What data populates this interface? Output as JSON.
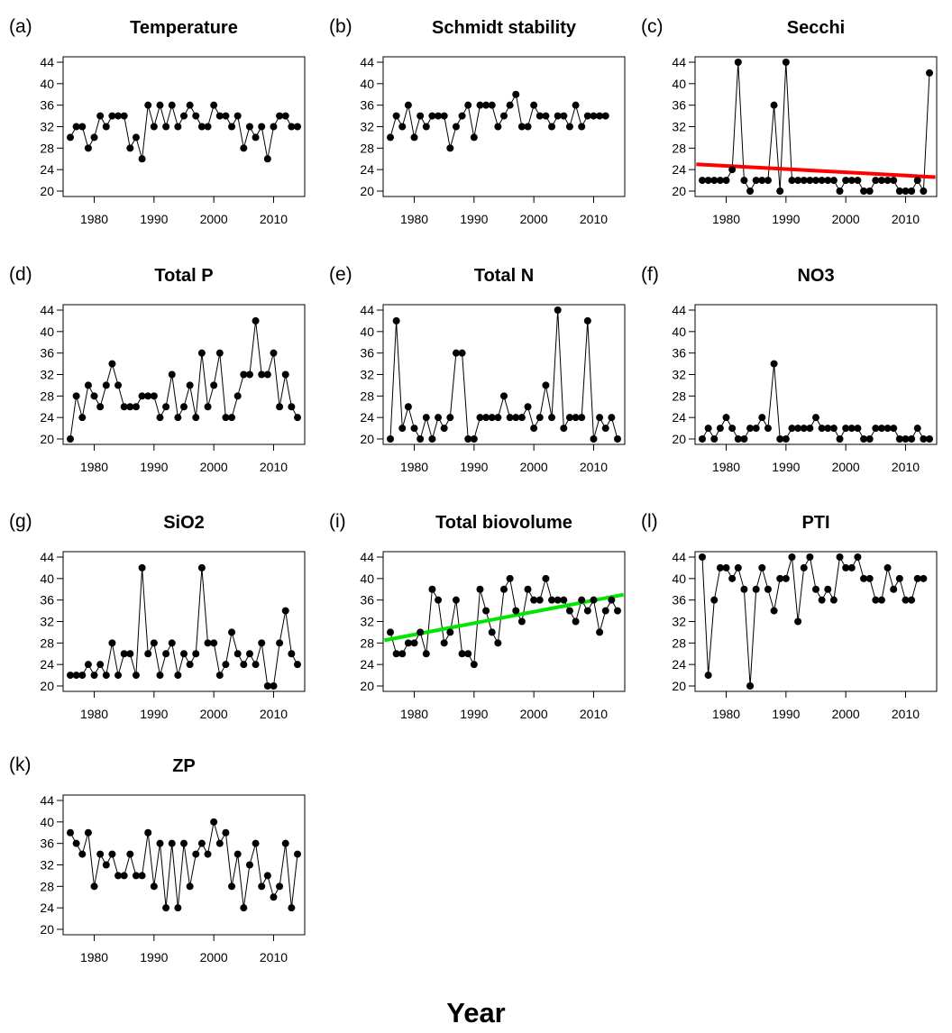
{
  "figure": {
    "xlabel": "Year"
  },
  "chart_data": [
    {
      "type": "line",
      "panel_label": "(a)",
      "title": "Temperature",
      "x": [
        1976,
        1977,
        1978,
        1979,
        1980,
        1981,
        1982,
        1983,
        1984,
        1985,
        1986,
        1987,
        1988,
        1989,
        1990,
        1991,
        1992,
        1993,
        1994,
        1995,
        1996,
        1997,
        1998,
        1999,
        2000,
        2001,
        2002,
        2003,
        2004,
        2005,
        2006,
        2007,
        2008,
        2009,
        2010,
        2011,
        2012,
        2013,
        2014
      ],
      "values": [
        30,
        32,
        32,
        28,
        30,
        34,
        32,
        34,
        34,
        34,
        28,
        30,
        26,
        36,
        32,
        36,
        32,
        36,
        32,
        34,
        36,
        34,
        32,
        32,
        36,
        34,
        34,
        32,
        34,
        28,
        32,
        30,
        32,
        26,
        32,
        34,
        34,
        32,
        32
      ],
      "xlim": [
        1975,
        2015
      ],
      "ylim": [
        20,
        44
      ],
      "xticks": [
        1980,
        1990,
        2000,
        2010
      ],
      "yticks": [
        20,
        24,
        28,
        32,
        36,
        40,
        44
      ]
    },
    {
      "type": "line",
      "panel_label": "(b)",
      "title": "Schmidt stability",
      "x": [
        1976,
        1977,
        1978,
        1979,
        1980,
        1981,
        1982,
        1983,
        1984,
        1985,
        1986,
        1987,
        1988,
        1989,
        1990,
        1991,
        1992,
        1993,
        1994,
        1995,
        1996,
        1997,
        1998,
        1999,
        2000,
        2001,
        2002,
        2003,
        2004,
        2005,
        2006,
        2007,
        2008,
        2009,
        2010,
        2011,
        2012
      ],
      "values": [
        30,
        34,
        32,
        36,
        30,
        34,
        32,
        34,
        34,
        34,
        28,
        32,
        34,
        36,
        30,
        36,
        36,
        36,
        32,
        34,
        36,
        38,
        32,
        32,
        36,
        34,
        34,
        32,
        34,
        34,
        32,
        36,
        32,
        34,
        34,
        34,
        34
      ],
      "xlim": [
        1975,
        2015
      ],
      "ylim": [
        20,
        44
      ],
      "xticks": [
        1980,
        1990,
        2000,
        2010
      ],
      "yticks": [
        20,
        24,
        28,
        32,
        36,
        40,
        44
      ]
    },
    {
      "type": "line",
      "panel_label": "(c)",
      "title": "Secchi",
      "x": [
        1976,
        1977,
        1978,
        1979,
        1980,
        1981,
        1982,
        1983,
        1984,
        1985,
        1986,
        1987,
        1988,
        1989,
        1990,
        1991,
        1992,
        1993,
        1994,
        1995,
        1996,
        1997,
        1998,
        1999,
        2000,
        2001,
        2002,
        2003,
        2004,
        2005,
        2006,
        2007,
        2008,
        2009,
        2010,
        2011,
        2012,
        2013,
        2014
      ],
      "values": [
        22,
        22,
        22,
        22,
        22,
        24,
        44,
        22,
        20,
        22,
        22,
        22,
        36,
        20,
        44,
        22,
        22,
        22,
        22,
        22,
        22,
        22,
        22,
        20,
        22,
        22,
        22,
        20,
        20,
        22,
        22,
        22,
        22,
        20,
        20,
        20,
        22,
        20,
        42
      ],
      "trend": {
        "color": "#ff0000",
        "x": [
          1975,
          2015
        ],
        "y": [
          25,
          22.6
        ]
      },
      "xlim": [
        1975,
        2015
      ],
      "ylim": [
        20,
        44
      ],
      "xticks": [
        1980,
        1990,
        2000,
        2010
      ],
      "yticks": [
        20,
        24,
        28,
        32,
        36,
        40,
        44
      ]
    },
    {
      "type": "line",
      "panel_label": "(d)",
      "title": "Total P",
      "x": [
        1976,
        1977,
        1978,
        1979,
        1980,
        1981,
        1982,
        1983,
        1984,
        1985,
        1986,
        1987,
        1988,
        1989,
        1990,
        1991,
        1992,
        1993,
        1994,
        1995,
        1996,
        1997,
        1998,
        1999,
        2000,
        2001,
        2002,
        2003,
        2004,
        2005,
        2006,
        2007,
        2008,
        2009,
        2010,
        2011,
        2012,
        2013,
        2014
      ],
      "values": [
        20,
        28,
        24,
        30,
        28,
        26,
        30,
        34,
        30,
        26,
        26,
        26,
        28,
        28,
        28,
        24,
        26,
        32,
        24,
        26,
        30,
        24,
        36,
        26,
        30,
        36,
        24,
        24,
        28,
        32,
        32,
        42,
        32,
        32,
        36,
        26,
        32,
        26,
        24
      ],
      "xlim": [
        1975,
        2015
      ],
      "ylim": [
        20,
        44
      ],
      "xticks": [
        1980,
        1990,
        2000,
        2010
      ],
      "yticks": [
        20,
        24,
        28,
        32,
        36,
        40,
        44
      ]
    },
    {
      "type": "line",
      "panel_label": "(e)",
      "title": "Total N",
      "x": [
        1976,
        1977,
        1978,
        1979,
        1980,
        1981,
        1982,
        1983,
        1984,
        1985,
        1986,
        1987,
        1988,
        1989,
        1990,
        1991,
        1992,
        1993,
        1994,
        1995,
        1996,
        1997,
        1998,
        1999,
        2000,
        2001,
        2002,
        2003,
        2004,
        2005,
        2006,
        2007,
        2008,
        2009,
        2010,
        2011,
        2012,
        2013,
        2014
      ],
      "values": [
        20,
        42,
        22,
        26,
        22,
        20,
        24,
        20,
        24,
        22,
        24,
        36,
        36,
        20,
        20,
        24,
        24,
        24,
        24,
        28,
        24,
        24,
        24,
        26,
        22,
        24,
        30,
        24,
        44,
        22,
        24,
        24,
        24,
        42,
        20,
        24,
        22,
        24,
        20
      ],
      "xlim": [
        1975,
        2015
      ],
      "ylim": [
        20,
        44
      ],
      "xticks": [
        1980,
        1990,
        2000,
        2010
      ],
      "yticks": [
        20,
        24,
        28,
        32,
        36,
        40,
        44
      ]
    },
    {
      "type": "line",
      "panel_label": "(f)",
      "title": "NO3",
      "x": [
        1976,
        1977,
        1978,
        1979,
        1980,
        1981,
        1982,
        1983,
        1984,
        1985,
        1986,
        1987,
        1988,
        1989,
        1990,
        1991,
        1992,
        1993,
        1994,
        1995,
        1996,
        1997,
        1998,
        1999,
        2000,
        2001,
        2002,
        2003,
        2004,
        2005,
        2006,
        2007,
        2008,
        2009,
        2010,
        2011,
        2012,
        2013,
        2014
      ],
      "values": [
        20,
        22,
        20,
        22,
        24,
        22,
        20,
        20,
        22,
        22,
        24,
        22,
        34,
        20,
        20,
        22,
        22,
        22,
        22,
        24,
        22,
        22,
        22,
        20,
        22,
        22,
        22,
        20,
        20,
        22,
        22,
        22,
        22,
        20,
        20,
        20,
        22,
        20,
        20
      ],
      "xlim": [
        1975,
        2015
      ],
      "ylim": [
        20,
        44
      ],
      "xticks": [
        1980,
        1990,
        2000,
        2010
      ],
      "yticks": [
        20,
        24,
        28,
        32,
        36,
        40,
        44
      ]
    },
    {
      "type": "line",
      "panel_label": "(g)",
      "title": "SiO2",
      "x": [
        1976,
        1977,
        1978,
        1979,
        1980,
        1981,
        1982,
        1983,
        1984,
        1985,
        1986,
        1987,
        1988,
        1989,
        1990,
        1991,
        1992,
        1993,
        1994,
        1995,
        1996,
        1997,
        1998,
        1999,
        2000,
        2001,
        2002,
        2003,
        2004,
        2005,
        2006,
        2007,
        2008,
        2009,
        2010,
        2011,
        2012,
        2013,
        2014
      ],
      "values": [
        22,
        22,
        22,
        24,
        22,
        24,
        22,
        28,
        22,
        26,
        26,
        22,
        42,
        26,
        28,
        22,
        26,
        28,
        22,
        26,
        24,
        26,
        42,
        28,
        28,
        22,
        24,
        30,
        26,
        24,
        26,
        24,
        28,
        20,
        20,
        28,
        34,
        26,
        24
      ],
      "xlim": [
        1975,
        2015
      ],
      "ylim": [
        20,
        44
      ],
      "xticks": [
        1980,
        1990,
        2000,
        2010
      ],
      "yticks": [
        20,
        24,
        28,
        32,
        36,
        40,
        44
      ]
    },
    {
      "type": "line",
      "panel_label": "(i)",
      "title": "Total biovolume",
      "x": [
        1976,
        1977,
        1978,
        1979,
        1980,
        1981,
        1982,
        1983,
        1984,
        1985,
        1986,
        1987,
        1988,
        1989,
        1990,
        1991,
        1992,
        1993,
        1994,
        1995,
        1996,
        1997,
        1998,
        1999,
        2000,
        2001,
        2002,
        2003,
        2004,
        2005,
        2006,
        2007,
        2008,
        2009,
        2010,
        2011,
        2012,
        2013,
        2014
      ],
      "values": [
        30,
        26,
        26,
        28,
        28,
        30,
        26,
        38,
        36,
        28,
        30,
        36,
        26,
        26,
        24,
        38,
        34,
        30,
        28,
        38,
        40,
        34,
        32,
        38,
        36,
        36,
        40,
        36,
        36,
        36,
        34,
        32,
        36,
        34,
        36,
        30,
        34,
        36,
        34
      ],
      "trend": {
        "color": "#00e600",
        "x": [
          1975,
          2015
        ],
        "y": [
          28.5,
          37
        ]
      },
      "xlim": [
        1975,
        2015
      ],
      "ylim": [
        20,
        44
      ],
      "xticks": [
        1980,
        1990,
        2000,
        2010
      ],
      "yticks": [
        20,
        24,
        28,
        32,
        36,
        40,
        44
      ]
    },
    {
      "type": "line",
      "panel_label": "(l)",
      "title": "PTI",
      "x": [
        1976,
        1977,
        1978,
        1979,
        1980,
        1981,
        1982,
        1983,
        1984,
        1985,
        1986,
        1987,
        1988,
        1989,
        1990,
        1991,
        1992,
        1993,
        1994,
        1995,
        1996,
        1997,
        1998,
        1999,
        2000,
        2001,
        2002,
        2003,
        2004,
        2005,
        2006,
        2007,
        2008,
        2009,
        2010,
        2011,
        2012,
        2013
      ],
      "values": [
        44,
        22,
        36,
        42,
        42,
        40,
        42,
        38,
        20,
        38,
        42,
        38,
        34,
        40,
        40,
        44,
        32,
        42,
        44,
        38,
        36,
        38,
        36,
        44,
        42,
        42,
        44,
        40,
        40,
        36,
        36,
        42,
        38,
        40,
        36,
        36,
        40,
        40
      ],
      "xlim": [
        1975,
        2015
      ],
      "ylim": [
        20,
        44
      ],
      "xticks": [
        1980,
        1990,
        2000,
        2010
      ],
      "yticks": [
        20,
        24,
        28,
        32,
        36,
        40,
        44
      ]
    },
    {
      "type": "line",
      "panel_label": "(k)",
      "title": "ZP",
      "x": [
        1976,
        1977,
        1978,
        1979,
        1980,
        1981,
        1982,
        1983,
        1984,
        1985,
        1986,
        1987,
        1988,
        1989,
        1990,
        1991,
        1992,
        1993,
        1994,
        1995,
        1996,
        1997,
        1998,
        1999,
        2000,
        2001,
        2002,
        2003,
        2004,
        2005,
        2006,
        2007,
        2008,
        2009,
        2010,
        2011,
        2012,
        2013,
        2014
      ],
      "values": [
        38,
        36,
        34,
        38,
        28,
        34,
        32,
        34,
        30,
        30,
        34,
        30,
        30,
        38,
        28,
        36,
        24,
        36,
        24,
        36,
        28,
        34,
        36,
        34,
        40,
        36,
        38,
        28,
        34,
        24,
        32,
        36,
        28,
        30,
        26,
        28,
        36,
        24,
        34
      ],
      "xlim": [
        1975,
        2015
      ],
      "ylim": [
        20,
        44
      ],
      "xticks": [
        1980,
        1990,
        2000,
        2010
      ],
      "yticks": [
        20,
        24,
        28,
        32,
        36,
        40,
        44
      ]
    }
  ]
}
